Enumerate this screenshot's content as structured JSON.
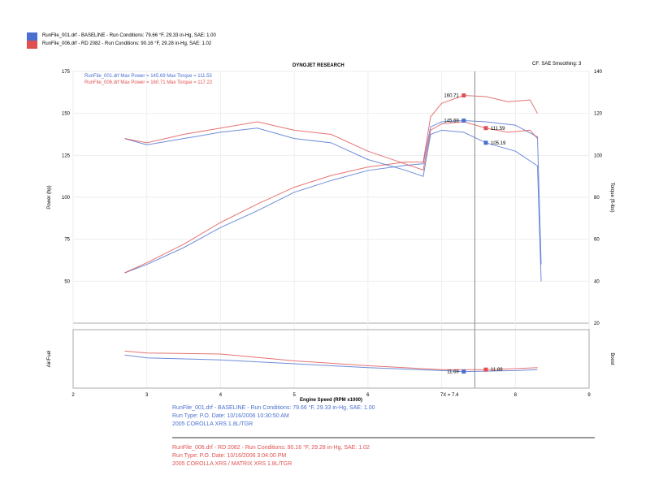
{
  "header": {
    "run1": "RunFile_001.drf - BASELINE - Run Conditions: 79.66 °F, 29.33 in-Hg, SAE: 1.00",
    "run2": "RunFile_006.drf - RD 2082 - Run Conditions: 90.16 °F, 29.28 in-Hg, SAE: 1.02",
    "title": "DYNOJET RESEARCH",
    "settings": "CF: SAE  Smoothing: 3"
  },
  "colors": {
    "baseline": "#4a6fd0",
    "mod": "#e05050"
  },
  "legend": {
    "l1": "RunFile_001.drf Max Power = 145.69    Max Torque = 111.53",
    "l2": "RunFile_006.drf Max Power = 160.71    Max Torque = 117.22"
  },
  "footer": {
    "b1": "RunFile_001.drf - BASELINE - Run Conditions: 79.66 °F, 29.33 in-Hg, SAE: 1.00",
    "b2": "Run Type: P.O. Date: 10/16/2006 10:30:50 AM",
    "b3": "2005 COROLLA XRS 1.8L/TGR",
    "r1": "RunFile_006.drf - RD 2082 - Run Conditions: 90.16 °F, 29.28 in-Hg, SAE: 1.02",
    "r2": "Run Type: P.O. Date: 10/16/2006 3:04:00 PM",
    "r3": "2005 COROLLA XRS / MATRIX XRS 1.8L/TGR"
  },
  "chart_data": [
    {
      "type": "line",
      "xlabel": "Engine Speed (RPM x1000)",
      "ylabel": "Power (hp)",
      "y2label": "Torque (ft-lbs)",
      "xlim": [
        2,
        9
      ],
      "ylim": [
        25,
        175
      ],
      "y2lim": [
        20,
        140
      ],
      "xticks": [
        "2",
        "3",
        "4",
        "5",
        "6",
        "7",
        "8",
        "9"
      ],
      "yticks": [
        "50",
        "75",
        "100",
        "125",
        "150",
        "175"
      ],
      "y2ticks": [
        "20",
        "40",
        "60",
        "80",
        "100",
        "120",
        "140"
      ],
      "cursor": {
        "label": "X = 7.4",
        "x": 7.45
      },
      "annotations": [
        {
          "text": "160.71",
          "x": 7.3,
          "y": 160.7,
          "series": "mod"
        },
        {
          "text": "145.69",
          "x": 7.3,
          "y": 145.7,
          "series": "baseline"
        },
        {
          "text": "111.59",
          "x": 7.6,
          "y": 113,
          "series": "mod",
          "axis": "y2"
        },
        {
          "text": "105.19",
          "x": 7.6,
          "y": 106,
          "series": "baseline",
          "axis": "y2"
        }
      ],
      "series": [
        {
          "id": "baseline",
          "kind": "power",
          "points": [
            [
              2.7,
              55
            ],
            [
              3,
              60
            ],
            [
              3.5,
              70
            ],
            [
              4,
              82
            ],
            [
              4.5,
              92
            ],
            [
              5,
              103
            ],
            [
              5.5,
              110
            ],
            [
              6,
              116
            ],
            [
              6.5,
              119
            ],
            [
              6.75,
              120
            ],
            [
              6.85,
              142
            ],
            [
              7,
              145
            ],
            [
              7.3,
              145.7
            ],
            [
              7.6,
              145
            ],
            [
              8,
              143
            ],
            [
              8.3,
              136
            ],
            [
              8.35,
              60
            ]
          ]
        },
        {
          "id": "mod",
          "kind": "power",
          "points": [
            [
              2.7,
              55
            ],
            [
              3,
              61
            ],
            [
              3.5,
              72
            ],
            [
              4,
              85
            ],
            [
              4.5,
              96
            ],
            [
              5,
              106
            ],
            [
              5.5,
              113
            ],
            [
              6,
              118
            ],
            [
              6.5,
              121
            ],
            [
              6.75,
              121
            ],
            [
              6.85,
              148
            ],
            [
              7,
              156
            ],
            [
              7.3,
              160.7
            ],
            [
              7.6,
              160
            ],
            [
              7.9,
              157
            ],
            [
              8.2,
              158
            ],
            [
              8.3,
              150
            ]
          ]
        },
        {
          "id": "baseline",
          "kind": "torque",
          "points": [
            [
              2.7,
              108
            ],
            [
              3,
              105
            ],
            [
              3.5,
              108
            ],
            [
              4,
              111
            ],
            [
              4.5,
              113
            ],
            [
              5,
              108
            ],
            [
              5.5,
              106
            ],
            [
              6,
              98
            ],
            [
              6.5,
              93
            ],
            [
              6.75,
              90
            ],
            [
              6.85,
              110
            ],
            [
              7,
              112
            ],
            [
              7.3,
              111
            ],
            [
              7.6,
              106
            ],
            [
              8,
              102
            ],
            [
              8.3,
              95
            ],
            [
              8.35,
              40
            ]
          ]
        },
        {
          "id": "mod",
          "kind": "torque",
          "points": [
            [
              2.7,
              108
            ],
            [
              3,
              106
            ],
            [
              3.5,
              110
            ],
            [
              4,
              113
            ],
            [
              4.5,
              116
            ],
            [
              5,
              112
            ],
            [
              5.5,
              110
            ],
            [
              6,
              102
            ],
            [
              6.5,
              96
            ],
            [
              6.75,
              93
            ],
            [
              6.85,
              112
            ],
            [
              7,
              115
            ],
            [
              7.3,
              116
            ],
            [
              7.6,
              113
            ],
            [
              7.9,
              111
            ],
            [
              8.2,
              112
            ],
            [
              8.3,
              108
            ]
          ]
        }
      ]
    },
    {
      "type": "line",
      "ylabel": "Air/Fuel",
      "y2label": "Boost",
      "xlim": [
        2,
        9
      ],
      "ylim": [
        10,
        16
      ],
      "annotations": [
        {
          "text": "11.69",
          "x": 7.3,
          "y": 11.7,
          "series": "baseline"
        },
        {
          "text": "11.89",
          "x": 7.6,
          "y": 11.9,
          "series": "mod"
        }
      ],
      "series": [
        {
          "id": "baseline",
          "points": [
            [
              2.7,
              13.4
            ],
            [
              3,
              13.1
            ],
            [
              4,
              12.9
            ],
            [
              5,
              12.5
            ],
            [
              6,
              12.1
            ],
            [
              7,
              11.8
            ],
            [
              7.3,
              11.7
            ],
            [
              8,
              11.8
            ],
            [
              8.3,
              11.9
            ]
          ]
        },
        {
          "id": "mod",
          "points": [
            [
              2.7,
              13.8
            ],
            [
              3,
              13.6
            ],
            [
              4,
              13.5
            ],
            [
              5,
              12.8
            ],
            [
              6,
              12.3
            ],
            [
              7,
              11.9
            ],
            [
              7.6,
              11.9
            ],
            [
              8,
              12
            ],
            [
              8.3,
              12.1
            ]
          ]
        }
      ]
    }
  ]
}
